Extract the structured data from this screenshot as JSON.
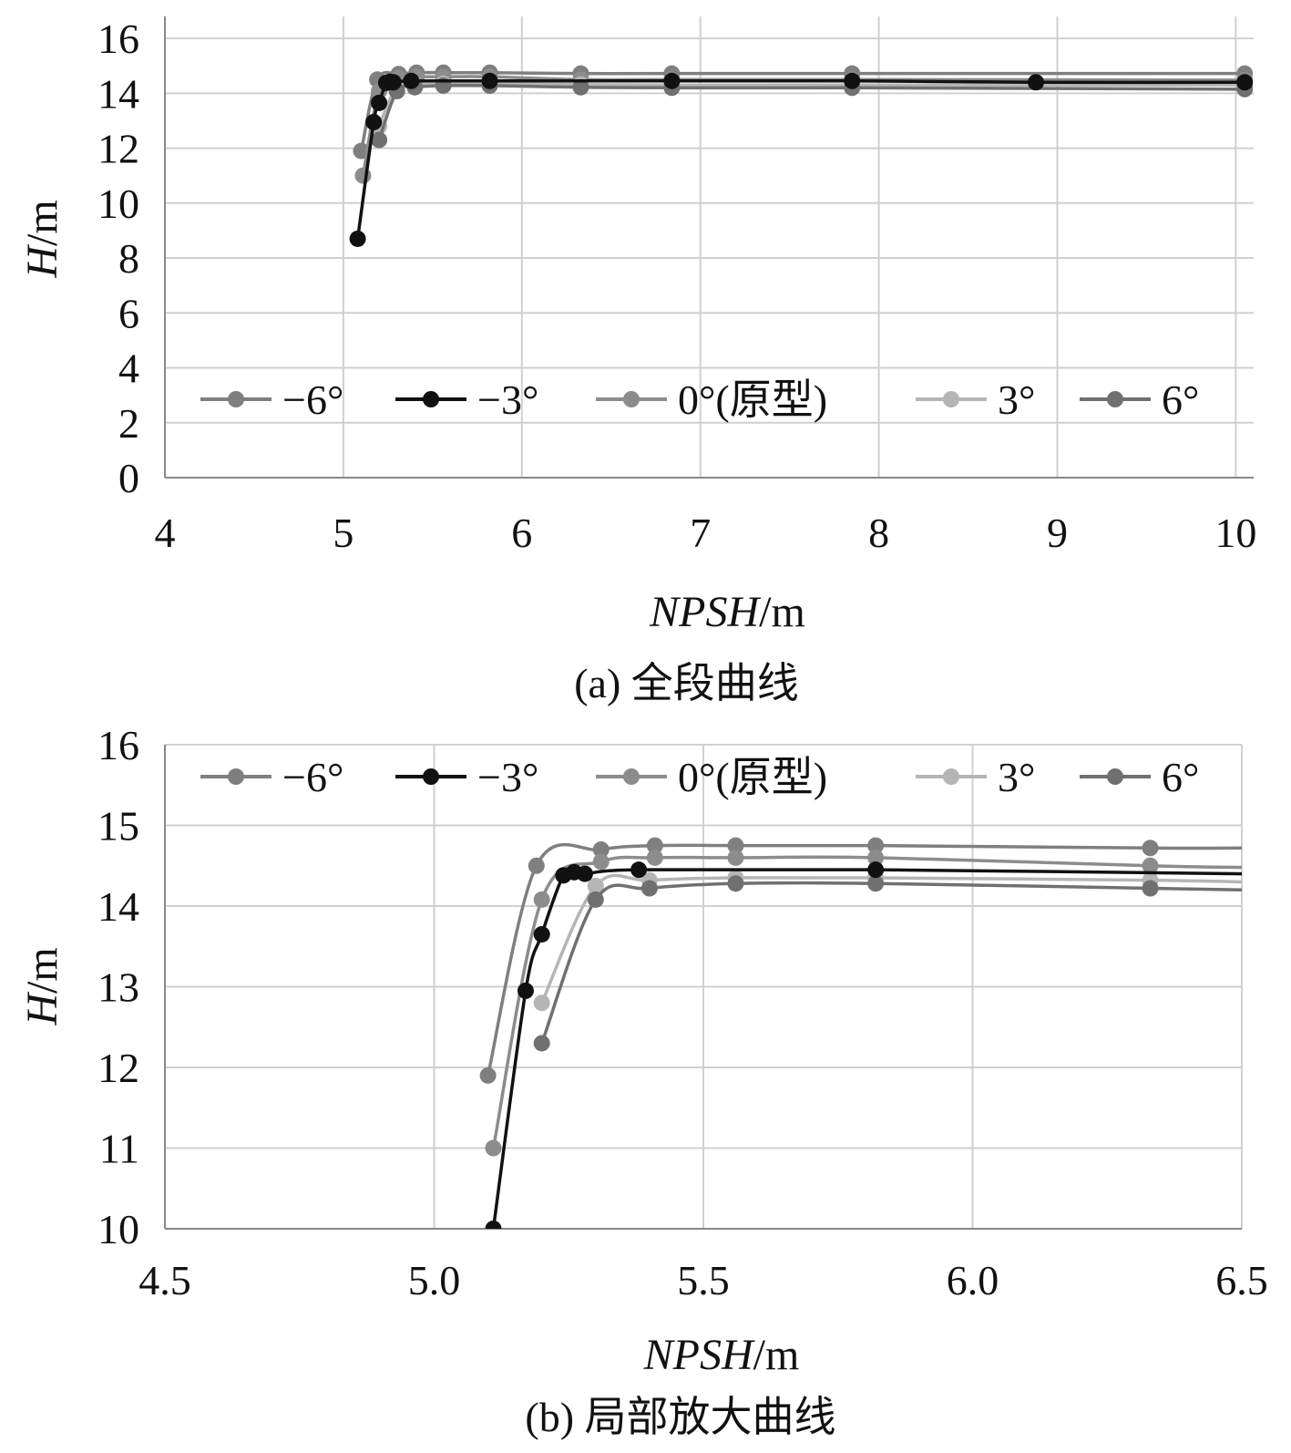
{
  "chart_data": [
    {
      "type": "line",
      "xlabel_italic": "NPSH",
      "xlabel_unit": "/m",
      "ylabel_italic": "H",
      "ylabel_unit": "/m",
      "xlim": [
        4,
        10.1
      ],
      "ylim": [
        0,
        16.8
      ],
      "xticks": [
        "4",
        "5",
        "6",
        "7",
        "8",
        "9",
        "10"
      ],
      "xtick_values": [
        4,
        5,
        6,
        7,
        8,
        9,
        10
      ],
      "yticks": [
        "0",
        "2",
        "4",
        "6",
        "8",
        "10",
        "12",
        "14",
        "16"
      ],
      "ytick_values": [
        0,
        2,
        4,
        6,
        8,
        10,
        12,
        14,
        16
      ],
      "caption": "(a) 全段曲线",
      "legend_position": "middle",
      "series": [
        {
          "name": "−6°",
          "color": "#7f7f7f",
          "x": [
            5.1,
            5.19,
            5.31,
            5.41,
            5.56,
            5.82,
            6.33,
            6.84,
            7.85,
            10.05
          ],
          "y": [
            11.9,
            14.5,
            14.7,
            14.75,
            14.75,
            14.75,
            14.72,
            14.72,
            14.72,
            14.72
          ]
        },
        {
          "name": "−3°",
          "color": "#111111",
          "x": [
            5.08,
            5.17,
            5.2,
            5.24,
            5.26,
            5.28,
            5.38,
            5.82,
            6.84,
            7.85,
            8.88,
            10.05
          ],
          "y": [
            8.7,
            12.95,
            13.65,
            14.38,
            14.42,
            14.4,
            14.45,
            14.45,
            14.45,
            14.45,
            14.4,
            14.4
          ]
        },
        {
          "name": "0°(原型)",
          "color": "#8c8c8c",
          "x": [
            5.11,
            5.2,
            5.31,
            5.41,
            5.56,
            5.82,
            6.33,
            6.84,
            7.85,
            10.05
          ],
          "y": [
            11.0,
            14.08,
            14.55,
            14.6,
            14.6,
            14.6,
            14.5,
            14.5,
            14.5,
            14.48
          ]
        },
        {
          "name": "3°",
          "color": "#b5b5b5",
          "x": [
            5.2,
            5.3,
            5.4,
            5.56,
            5.82,
            6.33,
            6.84,
            7.85,
            10.05
          ],
          "y": [
            12.8,
            14.25,
            14.32,
            14.35,
            14.35,
            14.32,
            14.3,
            14.3,
            14.3
          ]
        },
        {
          "name": "6°",
          "color": "#707070",
          "x": [
            5.2,
            5.3,
            5.4,
            5.56,
            5.82,
            6.33,
            6.84,
            7.85,
            10.05
          ],
          "y": [
            12.3,
            14.08,
            14.22,
            14.28,
            14.28,
            14.22,
            14.2,
            14.2,
            14.15
          ]
        }
      ]
    },
    {
      "type": "line",
      "xlabel_italic": "NPSH",
      "xlabel_unit": "/m",
      "ylabel_italic": "H",
      "ylabel_unit": "/m",
      "xlim": [
        4.5,
        6.5
      ],
      "ylim": [
        10,
        16
      ],
      "xticks": [
        "4.5",
        "5.0",
        "5.5",
        "6.0",
        "6.5"
      ],
      "xtick_values": [
        4.5,
        5.0,
        5.5,
        6.0,
        6.5
      ],
      "yticks": [
        "10",
        "11",
        "12",
        "13",
        "14",
        "15",
        "16"
      ],
      "ytick_values": [
        10,
        11,
        12,
        13,
        14,
        15,
        16
      ],
      "caption": "(b) 局部放大曲线",
      "legend_position": "top",
      "series": [
        {
          "name": "−6°",
          "color": "#7f7f7f",
          "x": [
            5.1,
            5.19,
            5.31,
            5.41,
            5.56,
            5.82,
            6.33,
            6.5
          ],
          "y": [
            11.9,
            14.5,
            14.7,
            14.75,
            14.75,
            14.75,
            14.72,
            14.72
          ]
        },
        {
          "name": "−3°",
          "color": "#111111",
          "x": [
            5.11,
            5.17,
            5.2,
            5.24,
            5.26,
            5.28,
            5.38,
            5.82,
            6.5
          ],
          "y": [
            10.0,
            12.95,
            13.65,
            14.38,
            14.42,
            14.4,
            14.45,
            14.45,
            14.4
          ]
        },
        {
          "name": "0°(原型)",
          "color": "#8c8c8c",
          "x": [
            5.11,
            5.2,
            5.31,
            5.41,
            5.56,
            5.82,
            6.33,
            6.5
          ],
          "y": [
            11.0,
            14.08,
            14.55,
            14.6,
            14.6,
            14.6,
            14.5,
            14.48
          ]
        },
        {
          "name": "3°",
          "color": "#b5b5b5",
          "x": [
            5.2,
            5.3,
            5.4,
            5.56,
            5.82,
            6.33,
            6.5
          ],
          "y": [
            12.8,
            14.25,
            14.32,
            14.35,
            14.35,
            14.32,
            14.3
          ]
        },
        {
          "name": "6°",
          "color": "#707070",
          "x": [
            5.2,
            5.3,
            5.4,
            5.56,
            5.82,
            6.33,
            6.5
          ],
          "y": [
            12.3,
            14.08,
            14.22,
            14.28,
            14.28,
            14.22,
            14.2
          ]
        }
      ]
    }
  ]
}
